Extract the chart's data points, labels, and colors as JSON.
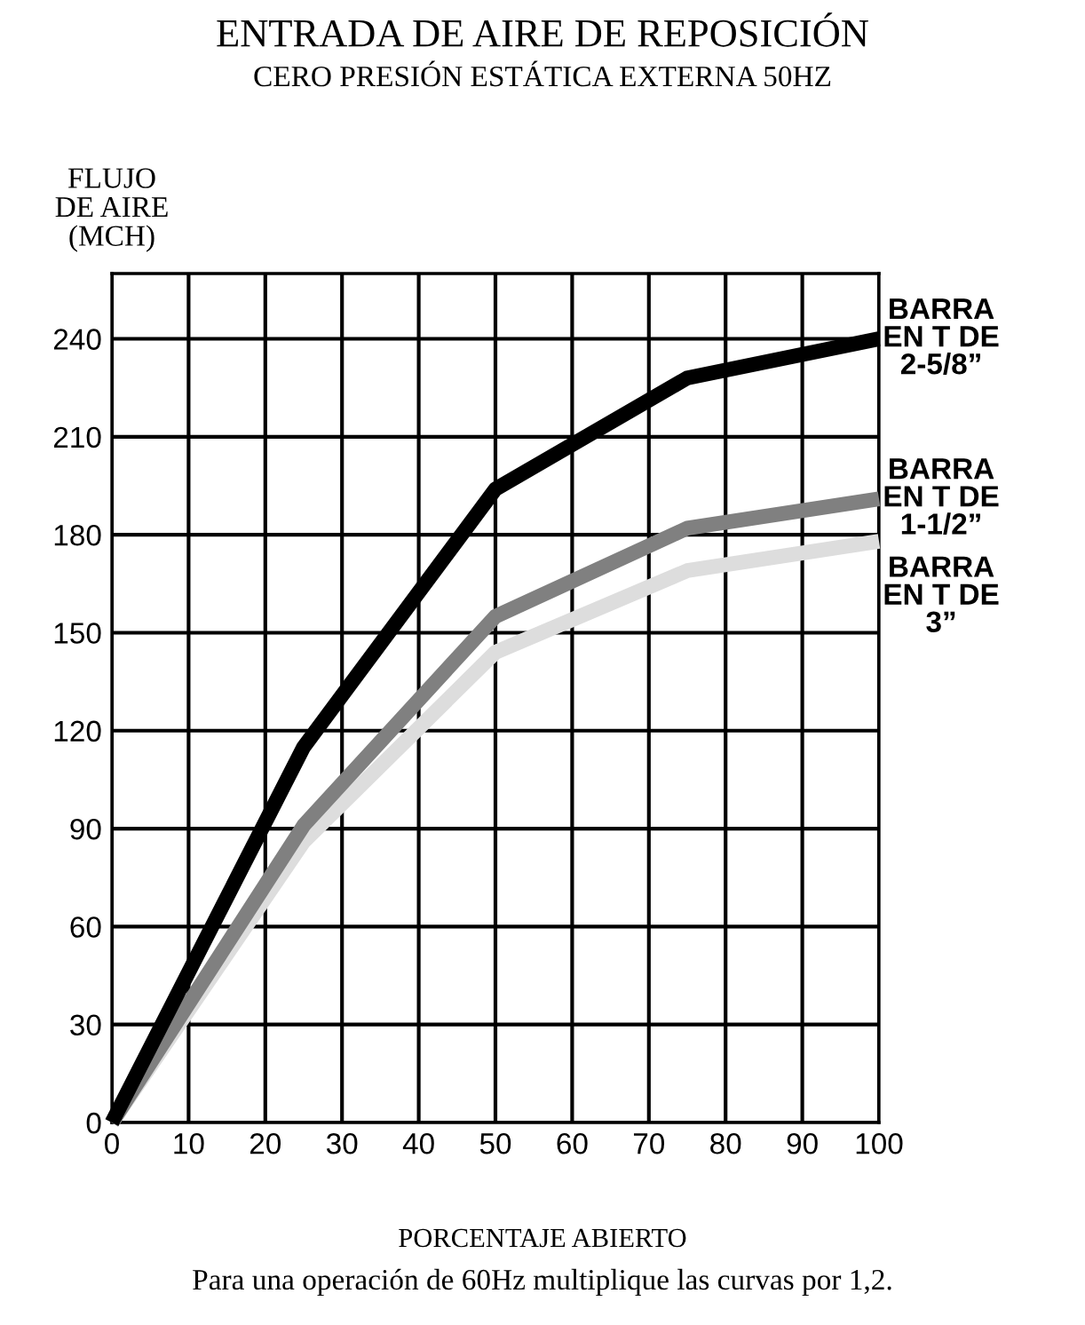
{
  "chart_data": {
    "type": "line",
    "title": "ENTRADA DE AIRE DE REPOSICIÓN",
    "subtitle": "CERO PRESIÓN ESTÁTICA EXTERNA 50HZ",
    "ylabel": "FLUJO\nDE AIRE\n(MCH)",
    "xlabel": "PORCENTAJE ABIERTO",
    "annotations": [
      "Para una operación de 60Hz multiplique las curvas por 1,2."
    ],
    "x": [
      0,
      25,
      50,
      75,
      100
    ],
    "series": [
      {
        "name": "BARRA\nEN T DE\n2-5/8”",
        "color": "#000000",
        "values": [
          0,
          115,
          194,
          228,
          240
        ]
      },
      {
        "name": "BARRA\nEN T DE\n1-1/2”",
        "color": "#808080",
        "values": [
          0,
          91,
          155,
          182,
          191
        ]
      },
      {
        "name": "BARRA\nEN T DE\n3”",
        "color": "#dddddd",
        "values": [
          0,
          86,
          144,
          169,
          178
        ]
      }
    ],
    "xlim": [
      0,
      100
    ],
    "xticks": [
      0,
      10,
      20,
      30,
      40,
      50,
      60,
      70,
      80,
      90,
      100
    ],
    "ylim": [
      0,
      260
    ],
    "yticks": [
      0,
      30,
      60,
      90,
      120,
      150,
      180,
      210,
      240
    ],
    "grid": true,
    "marker": "none",
    "line_style": "solid"
  }
}
